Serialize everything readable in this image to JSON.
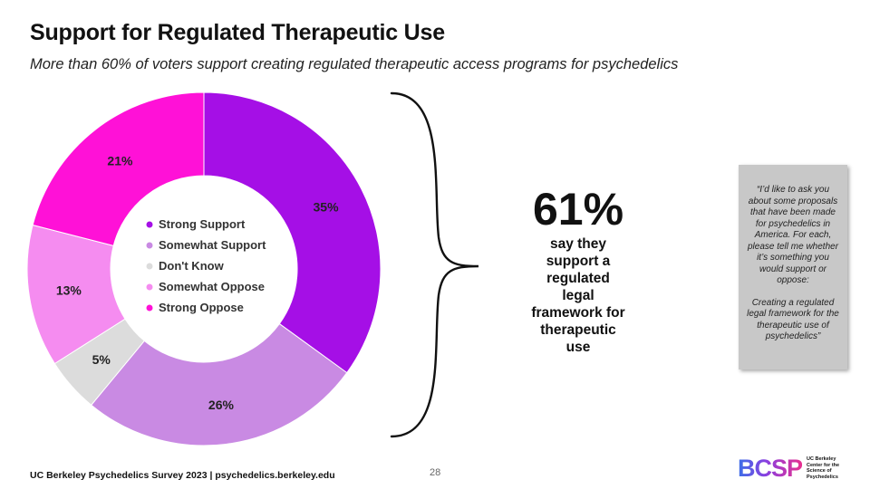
{
  "header": {
    "title": "Support for Regulated Therapeutic Use",
    "subtitle": "More than 60% of voters support creating regulated therapeutic access programs for psychedelics"
  },
  "chart_data": {
    "type": "pie",
    "donut": true,
    "categories": [
      "Strong Support",
      "Somewhat Support",
      "Don't Know",
      "Somewhat Oppose",
      "Strong Oppose"
    ],
    "values": [
      35,
      26,
      5,
      13,
      21
    ],
    "labels": [
      "35%",
      "26%",
      "5%",
      "13%",
      "21%"
    ],
    "colors": [
      "#a50fe6",
      "#c98ae3",
      "#dcdcdc",
      "#f58cf0",
      "#ff11d7"
    ],
    "legend_placement": "center"
  },
  "callout": {
    "stat": "61%",
    "caption_lines": [
      "say they",
      "support a",
      "regulated",
      "legal",
      "framework for",
      "therapeutic",
      "use"
    ]
  },
  "quote": {
    "question": "“I’d like to ask you about some proposals that have been made for psychedelics in America. For each, please tell me whether it’s something you would support or oppose:",
    "item": "Creating a regulated legal framework for the therapeutic use of psychedelics”"
  },
  "footer": {
    "source": "UC Berkeley Psychedelics Survey 2023 | psychedelics.berkeley.edu",
    "page": "28"
  },
  "logo": {
    "letters": "BCSP",
    "lines": [
      "UC Berkeley",
      "Center for the",
      "Science of",
      "Psychedelics"
    ]
  }
}
